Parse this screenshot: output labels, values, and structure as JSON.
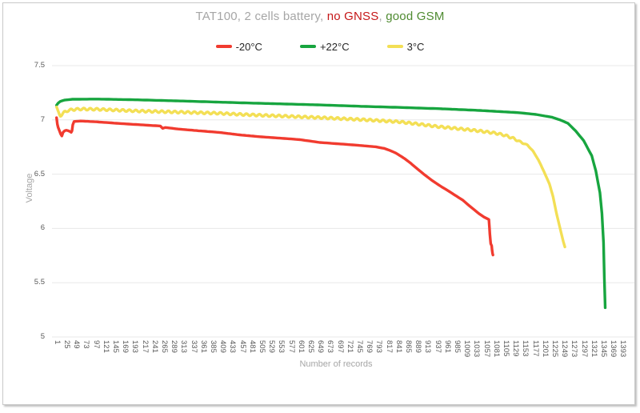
{
  "colors": {
    "background": "#FFFFFF",
    "frame_border": "#C9C9C9",
    "gridline": "#E8E8E8",
    "tick_text": "#595959",
    "axis_title_text": "#A6A6A6",
    "legend_text": "#262626",
    "title_gray": "#A6A6A6",
    "title_red": "#C51718",
    "title_green": "#4F8B31"
  },
  "chart_data": {
    "type": "line",
    "title": "TAT100, 2 cells battery, no GNSS, good GSM",
    "title_segments": [
      {
        "text": "TAT100, 2 cells battery, ",
        "color": "#A6A6A6"
      },
      {
        "text": "no GNSS",
        "color": "#C51718"
      },
      {
        "text": ", ",
        "color": "#A6A6A6"
      },
      {
        "text": "good GSM",
        "color": "#4F8B31"
      }
    ],
    "xlabel": "Number of records",
    "ylabel": "Voltage",
    "ylim": [
      5,
      7.5
    ],
    "xlim": [
      1,
      1393
    ],
    "y_ticks": [
      7.5,
      7,
      6.5,
      6,
      5.5,
      5
    ],
    "x_ticks": [
      1,
      25,
      49,
      73,
      97,
      121,
      145,
      169,
      193,
      217,
      241,
      265,
      289,
      313,
      337,
      361,
      385,
      409,
      433,
      457,
      481,
      505,
      529,
      553,
      577,
      601,
      625,
      649,
      673,
      697,
      721,
      745,
      769,
      793,
      817,
      841,
      865,
      889,
      913,
      937,
      961,
      985,
      1009,
      1033,
      1057,
      1081,
      1105,
      1129,
      1153,
      1177,
      1201,
      1225,
      1249,
      1273,
      1297,
      1321,
      1345,
      1369,
      1393
    ],
    "grid": "horizontal",
    "legend_position": "top",
    "series": [
      {
        "name": "-20°C",
        "color": "#F13B2F",
        "points": [
          [
            1,
            7.02
          ],
          [
            3,
            6.96
          ],
          [
            5,
            6.93
          ],
          [
            8,
            6.9
          ],
          [
            11,
            6.87
          ],
          [
            14,
            6.852
          ],
          [
            17,
            6.885
          ],
          [
            21,
            6.9
          ],
          [
            25,
            6.905
          ],
          [
            30,
            6.9
          ],
          [
            34,
            6.893
          ],
          [
            37,
            6.886
          ],
          [
            39,
            6.9
          ],
          [
            41,
            6.955
          ],
          [
            44,
            6.985
          ],
          [
            60,
            6.99
          ],
          [
            100,
            6.982
          ],
          [
            160,
            6.966
          ],
          [
            220,
            6.952
          ],
          [
            256,
            6.944
          ],
          [
            262,
            6.922
          ],
          [
            268,
            6.93
          ],
          [
            300,
            6.916
          ],
          [
            350,
            6.9
          ],
          [
            400,
            6.885
          ],
          [
            451,
            6.862
          ],
          [
            500,
            6.845
          ],
          [
            550,
            6.832
          ],
          [
            600,
            6.818
          ],
          [
            648,
            6.792
          ],
          [
            700,
            6.778
          ],
          [
            746,
            6.765
          ],
          [
            786,
            6.752
          ],
          [
            806,
            6.738
          ],
          [
            820,
            6.72
          ],
          [
            835,
            6.695
          ],
          [
            845,
            6.672
          ],
          [
            858,
            6.64
          ],
          [
            872,
            6.6
          ],
          [
            886,
            6.555
          ],
          [
            904,
            6.5
          ],
          [
            925,
            6.44
          ],
          [
            945,
            6.39
          ],
          [
            969,
            6.335
          ],
          [
            1000,
            6.26
          ],
          [
            1022,
            6.19
          ],
          [
            1040,
            6.135
          ],
          [
            1052,
            6.105
          ],
          [
            1060,
            6.09
          ],
          [
            1064,
            6.082
          ],
          [
            1065.5,
            6.01
          ],
          [
            1066.5,
            5.95
          ],
          [
            1067.5,
            5.9
          ],
          [
            1068.5,
            5.86
          ],
          [
            1071,
            5.84
          ],
          [
            1072,
            5.8
          ],
          [
            1073,
            5.77
          ],
          [
            1074,
            5.755
          ]
        ]
      },
      {
        "name": "+22°C",
        "color": "#17A53F",
        "points": [
          [
            1,
            7.135
          ],
          [
            5,
            7.155
          ],
          [
            10,
            7.17
          ],
          [
            20,
            7.182
          ],
          [
            40,
            7.19
          ],
          [
            100,
            7.192
          ],
          [
            200,
            7.185
          ],
          [
            300,
            7.175
          ],
          [
            451,
            7.158
          ],
          [
            550,
            7.148
          ],
          [
            648,
            7.138
          ],
          [
            750,
            7.125
          ],
          [
            845,
            7.115
          ],
          [
            944,
            7.103
          ],
          [
            1042,
            7.087
          ],
          [
            1140,
            7.066
          ],
          [
            1180,
            7.05
          ],
          [
            1219,
            7.025
          ],
          [
            1239,
            7.0
          ],
          [
            1258,
            6.97
          ],
          [
            1277,
            6.9
          ],
          [
            1297,
            6.81
          ],
          [
            1317,
            6.67
          ],
          [
            1327,
            6.53
          ],
          [
            1337,
            6.33
          ],
          [
            1342,
            6.14
          ],
          [
            1346,
            5.87
          ],
          [
            1348,
            5.55
          ],
          [
            1350,
            5.27
          ]
        ]
      },
      {
        "name": "3°C",
        "color": "#F3DF55",
        "points": [
          [
            1,
            7.115
          ],
          [
            4,
            7.08
          ],
          [
            7,
            7.055
          ],
          [
            10,
            7.04
          ],
          [
            14,
            7.05
          ],
          [
            20,
            7.07
          ],
          [
            28,
            7.085
          ],
          [
            40,
            7.095
          ],
          [
            60,
            7.1
          ],
          [
            100,
            7.098
          ],
          [
            200,
            7.082
          ],
          [
            300,
            7.072
          ],
          [
            400,
            7.061
          ],
          [
            451,
            7.051
          ],
          [
            550,
            7.036
          ],
          [
            648,
            7.021
          ],
          [
            750,
            7.003
          ],
          [
            845,
            6.982
          ],
          [
            904,
            6.955
          ],
          [
            934,
            6.94
          ],
          [
            1000,
            6.915
          ],
          [
            1041,
            6.898
          ],
          [
            1080,
            6.878
          ],
          [
            1100,
            6.862
          ],
          [
            1121,
            6.835
          ],
          [
            1140,
            6.8
          ],
          [
            1160,
            6.765
          ],
          [
            1173,
            6.71
          ],
          [
            1186,
            6.63
          ],
          [
            1200,
            6.52
          ],
          [
            1213,
            6.41
          ],
          [
            1222,
            6.29
          ],
          [
            1229,
            6.16
          ],
          [
            1236,
            6.05
          ],
          [
            1243,
            5.94
          ],
          [
            1247,
            5.88
          ],
          [
            1251,
            5.83
          ]
        ],
        "wiggle": {
          "amplitude": 0.01,
          "period": 16
        }
      }
    ]
  }
}
